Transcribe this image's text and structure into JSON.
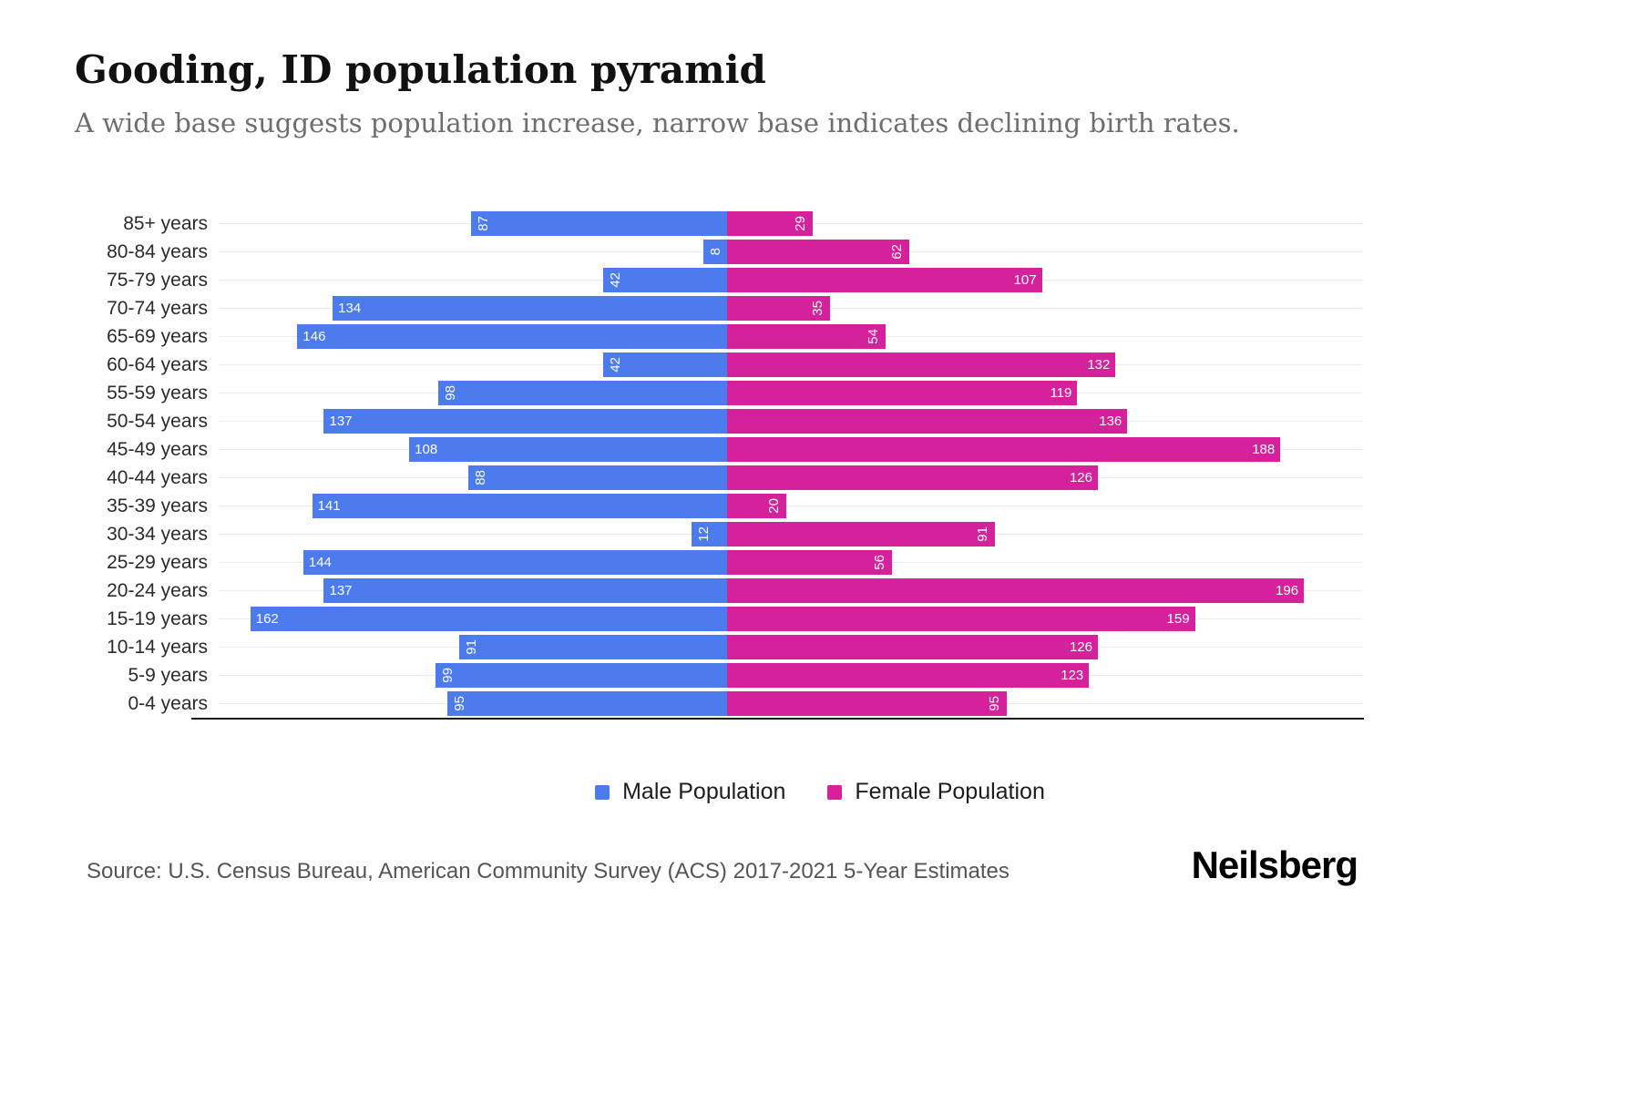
{
  "title": "Gooding, ID population pyramid",
  "subtitle": "A wide base suggests population increase, narrow base indicates declining birth rates.",
  "source": "Source: U.S. Census Bureau, American Community Survey (ACS) 2017-2021 5-Year Estimates",
  "brand": "Neilsberg",
  "legend": {
    "male": "Male Population",
    "female": "Female Population"
  },
  "colors": {
    "male": "#4B7BEC",
    "female": "#D6219C",
    "gridline": "#ebebeb",
    "axis": "#1c1c1c"
  },
  "chart_data": {
    "type": "bar",
    "variant": "population-pyramid",
    "orientation": "horizontal",
    "title": "Gooding, ID population pyramid",
    "xlabel": "",
    "ylabel": "",
    "xlim_per_side": [
      0,
      200
    ],
    "grid": true,
    "legend_position": "bottom-center",
    "categories": [
      "85+ years",
      "80-84 years",
      "75-79 years",
      "70-74 years",
      "65-69 years",
      "60-64 years",
      "55-59 years",
      "50-54 years",
      "45-49 years",
      "40-44 years",
      "35-39 years",
      "30-34 years",
      "25-29 years",
      "20-24 years",
      "15-19 years",
      "10-14 years",
      "5-9 years",
      "0-4 years"
    ],
    "series": [
      {
        "name": "Male Population",
        "side": "left",
        "values": [
          87,
          8,
          42,
          134,
          146,
          42,
          98,
          137,
          108,
          88,
          141,
          12,
          144,
          137,
          162,
          91,
          99,
          95
        ]
      },
      {
        "name": "Female Population",
        "side": "right",
        "values": [
          29,
          62,
          107,
          35,
          54,
          132,
          119,
          136,
          188,
          126,
          20,
          91,
          56,
          196,
          159,
          126,
          123,
          95
        ]
      }
    ]
  }
}
